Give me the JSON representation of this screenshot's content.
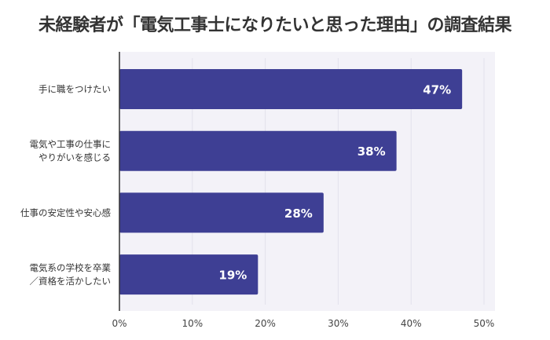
{
  "chart_data": {
    "type": "bar",
    "orientation": "horizontal",
    "title": "未経験者が「電気工事士になりたいと思った理由」の調査結果",
    "categories": [
      [
        "手に職をつけたい"
      ],
      [
        "電気や工事の仕事に",
        "やりがいを感じる"
      ],
      [
        "仕事の安定性や安心感"
      ],
      [
        "電気系の学校を卒業",
        "／資格を活かしたい"
      ]
    ],
    "values": [
      47,
      38,
      28,
      19
    ],
    "value_labels": [
      "47%",
      "38%",
      "28%",
      "19%"
    ],
    "xlim": [
      0,
      50
    ],
    "xticks": [
      0,
      10,
      20,
      30,
      40,
      50
    ],
    "xtick_labels": [
      "0%",
      "10%",
      "20%",
      "30%",
      "40%",
      "50%"
    ],
    "xlabel": "",
    "ylabel": "",
    "grid": true,
    "bar_color": "#3e3f94",
    "plot_bg": "#f3f2f8"
  }
}
